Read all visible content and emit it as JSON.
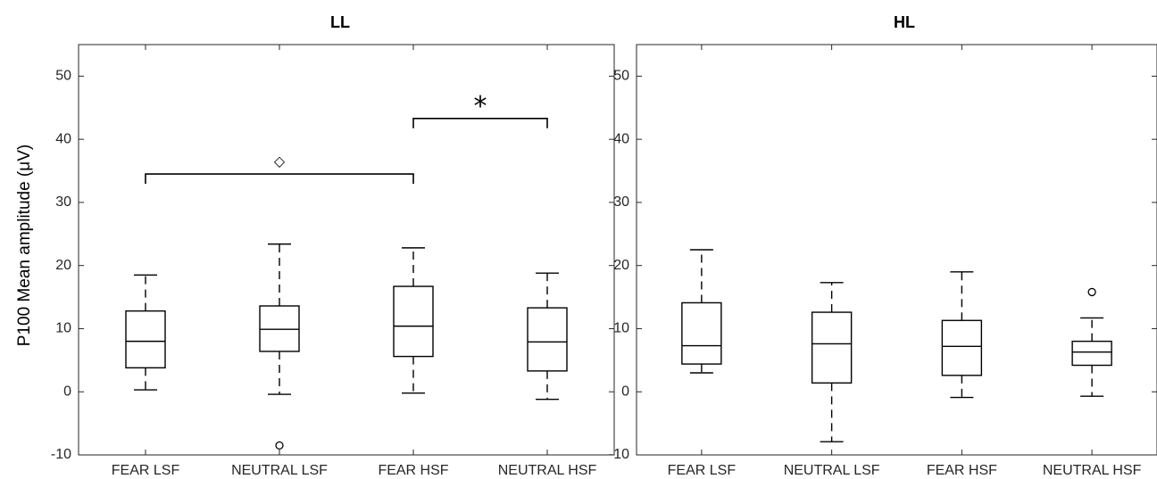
{
  "chart_data": [
    {
      "type": "box",
      "title": "LL",
      "ylabel": "P100 Mean amplitude (μV)",
      "xlabel": "",
      "categories": [
        "FEAR LSF",
        "NEUTRAL LSF",
        "FEAR HSF",
        "NEUTRAL HSF"
      ],
      "ylim": [
        -10,
        55
      ],
      "yticks": [
        -10,
        0,
        10,
        20,
        30,
        40,
        50
      ],
      "grid": false,
      "boxes": [
        {
          "category": "FEAR LSF",
          "whisker_low": 0.3,
          "q1": 3.8,
          "median": 8.0,
          "q3": 12.8,
          "whisker_high": 18.5,
          "outliers": []
        },
        {
          "category": "NEUTRAL LSF",
          "whisker_low": -0.4,
          "q1": 6.4,
          "median": 9.9,
          "q3": 13.6,
          "whisker_high": 23.4,
          "outliers": [
            -8.5
          ]
        },
        {
          "category": "FEAR HSF",
          "whisker_low": -0.2,
          "q1": 5.6,
          "median": 10.4,
          "q3": 16.7,
          "whisker_high": 22.8,
          "outliers": []
        },
        {
          "category": "NEUTRAL HSF",
          "whisker_low": -1.2,
          "q1": 3.3,
          "median": 7.9,
          "q3": 13.3,
          "whisker_high": 18.8,
          "outliers": []
        }
      ],
      "annotations": [
        {
          "from": "FEAR LSF",
          "to": "FEAR HSF",
          "y": 34.5,
          "marker": "◇"
        },
        {
          "from": "FEAR HSF",
          "to": "NEUTRAL HSF",
          "y": 43.3,
          "marker": "*"
        }
      ]
    },
    {
      "type": "box",
      "title": "HL",
      "ylabel": "",
      "xlabel": "",
      "categories": [
        "FEAR LSF",
        "NEUTRAL LSF",
        "FEAR HSF",
        "NEUTRAL HSF"
      ],
      "ylim": [
        -10,
        55
      ],
      "yticks": [
        -10,
        0,
        10,
        20,
        30,
        40,
        50
      ],
      "grid": false,
      "boxes": [
        {
          "category": "FEAR LSF",
          "whisker_low": 3.0,
          "q1": 4.4,
          "median": 7.3,
          "q3": 14.1,
          "whisker_high": 22.5,
          "outliers": []
        },
        {
          "category": "NEUTRAL LSF",
          "whisker_low": -7.9,
          "q1": 1.4,
          "median": 7.6,
          "q3": 12.6,
          "whisker_high": 17.3,
          "outliers": []
        },
        {
          "category": "FEAR HSF",
          "whisker_low": -0.9,
          "q1": 2.6,
          "median": 7.2,
          "q3": 11.3,
          "whisker_high": 19.0,
          "outliers": []
        },
        {
          "category": "NEUTRAL HSF",
          "whisker_low": -0.7,
          "q1": 4.2,
          "median": 6.3,
          "q3": 8.0,
          "whisker_high": 11.7,
          "outliers": [
            15.8
          ]
        }
      ],
      "annotations": []
    }
  ]
}
